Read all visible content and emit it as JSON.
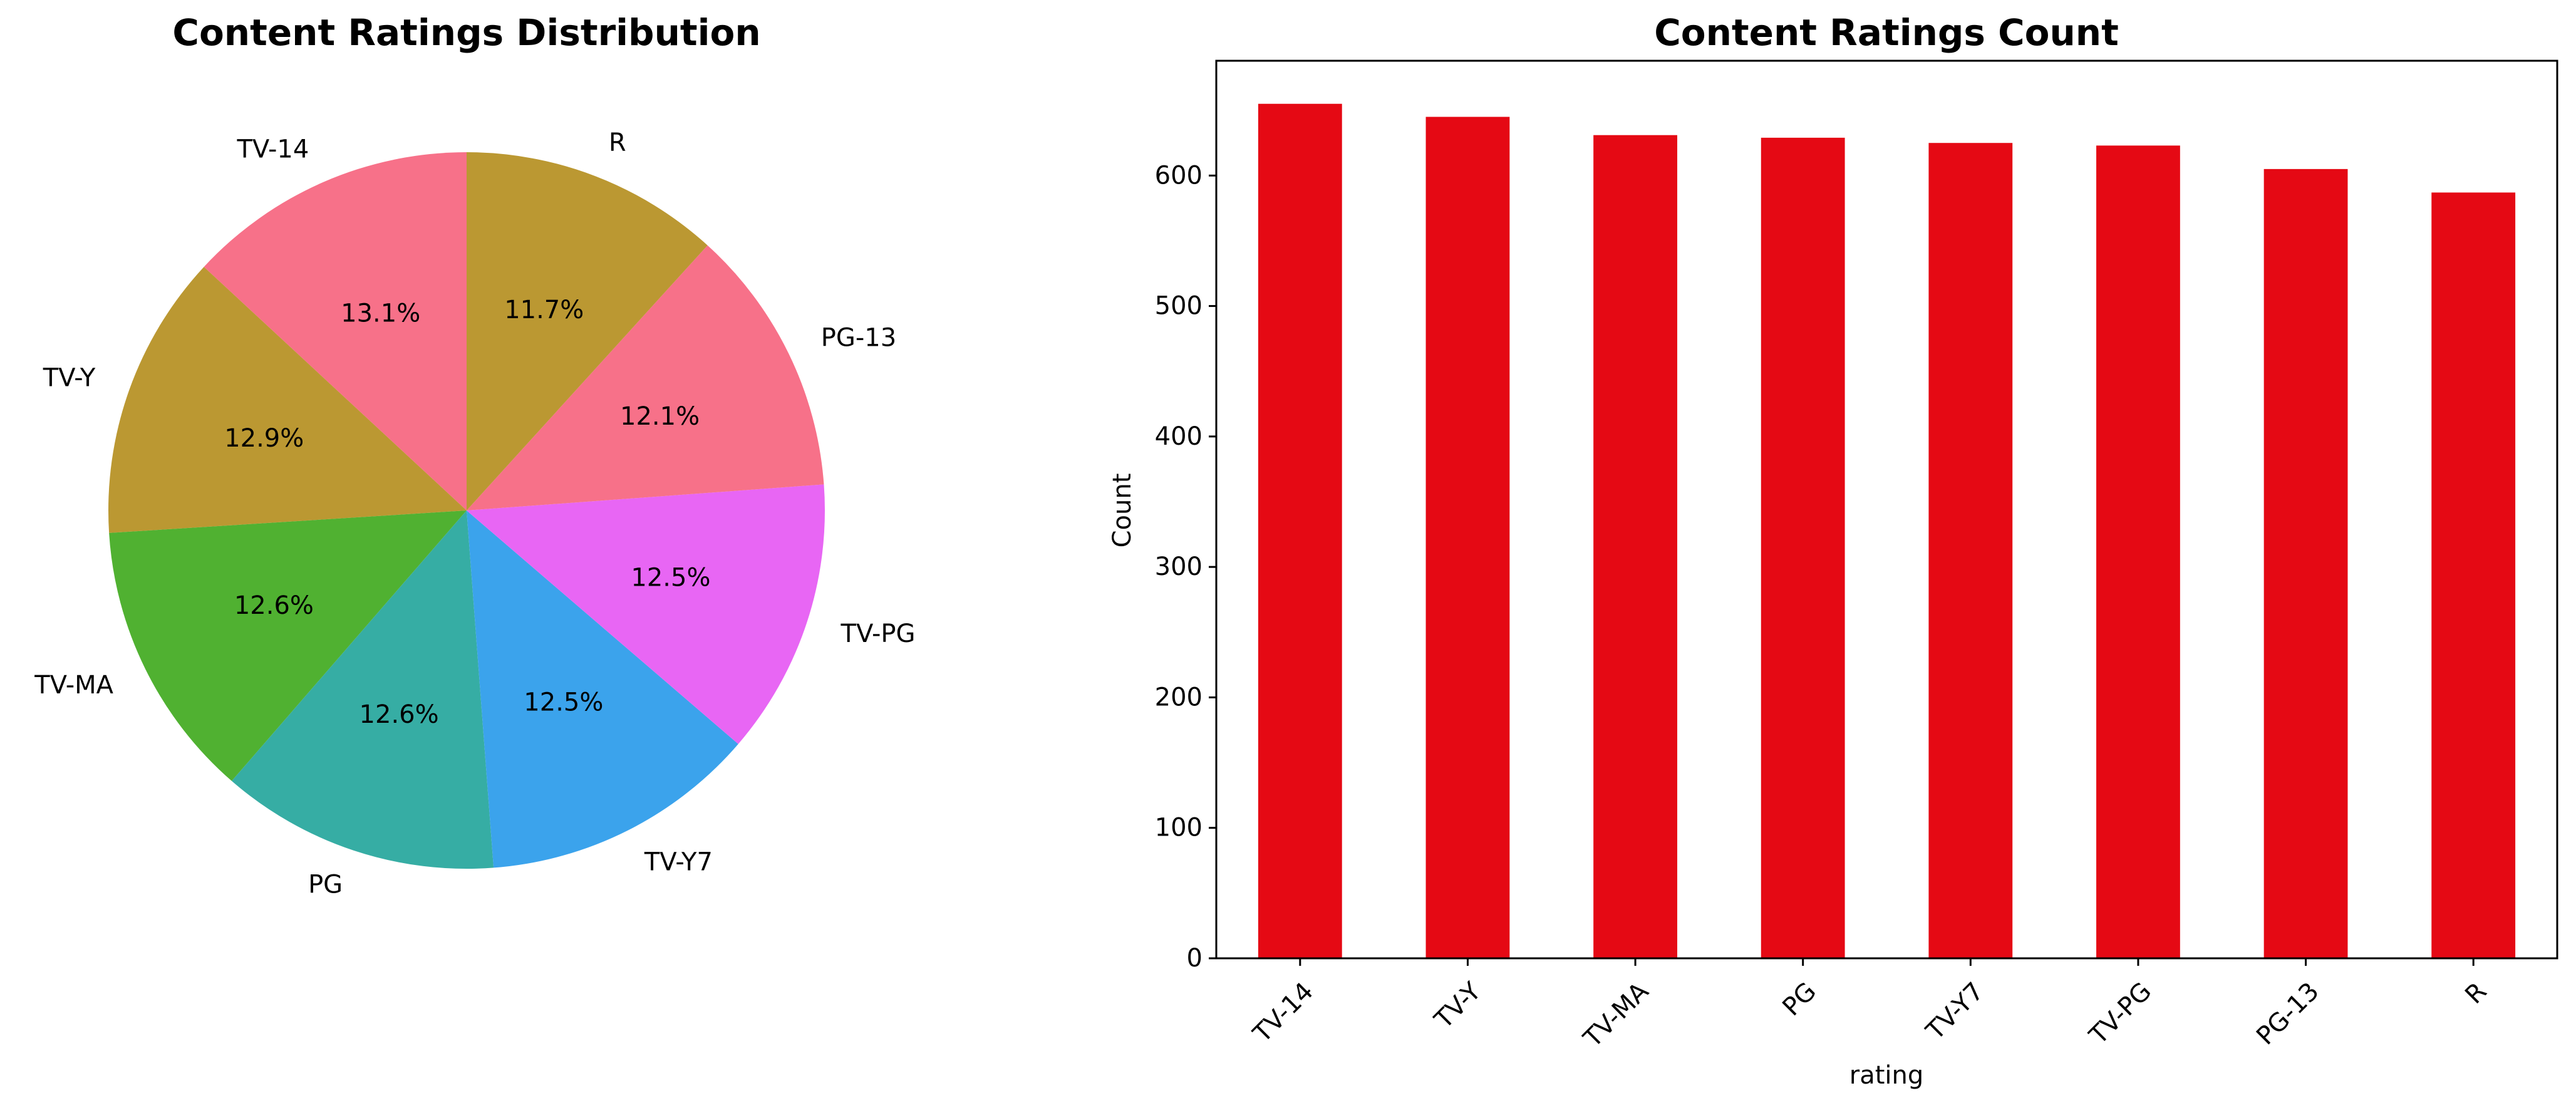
{
  "chart_data": [
    {
      "type": "pie",
      "title": "Content Ratings Distribution",
      "labels": [
        "TV-14",
        "TV-Y",
        "TV-MA",
        "PG",
        "TV-Y7",
        "TV-PG",
        "PG-13",
        "R"
      ],
      "values": [
        655,
        645,
        631,
        629,
        625,
        623,
        605,
        587
      ],
      "pct_labels": [
        "13.1%",
        "12.9%",
        "12.6%",
        "12.6%",
        "12.5%",
        "12.5%",
        "12.1%",
        "11.7%"
      ],
      "colors": [
        "#f77189",
        "#bb9832",
        "#50b131",
        "#36ada4",
        "#3ba3ec",
        "#e866f4",
        "#f77189",
        "#bb9832"
      ],
      "start_angle_deg": 90,
      "direction": "counterclockwise"
    },
    {
      "type": "bar",
      "title": "Content Ratings Count",
      "categories": [
        "TV-14",
        "TV-Y",
        "TV-MA",
        "PG",
        "TV-Y7",
        "TV-PG",
        "PG-13",
        "R"
      ],
      "values": [
        655,
        645,
        631,
        629,
        625,
        623,
        605,
        587
      ],
      "xlabel": "rating",
      "ylabel": "Count",
      "ylim": [
        0,
        688
      ],
      "yticks": [
        0,
        100,
        200,
        300,
        400,
        500,
        600
      ],
      "bar_color": "#e50914",
      "grid": false
    }
  ]
}
